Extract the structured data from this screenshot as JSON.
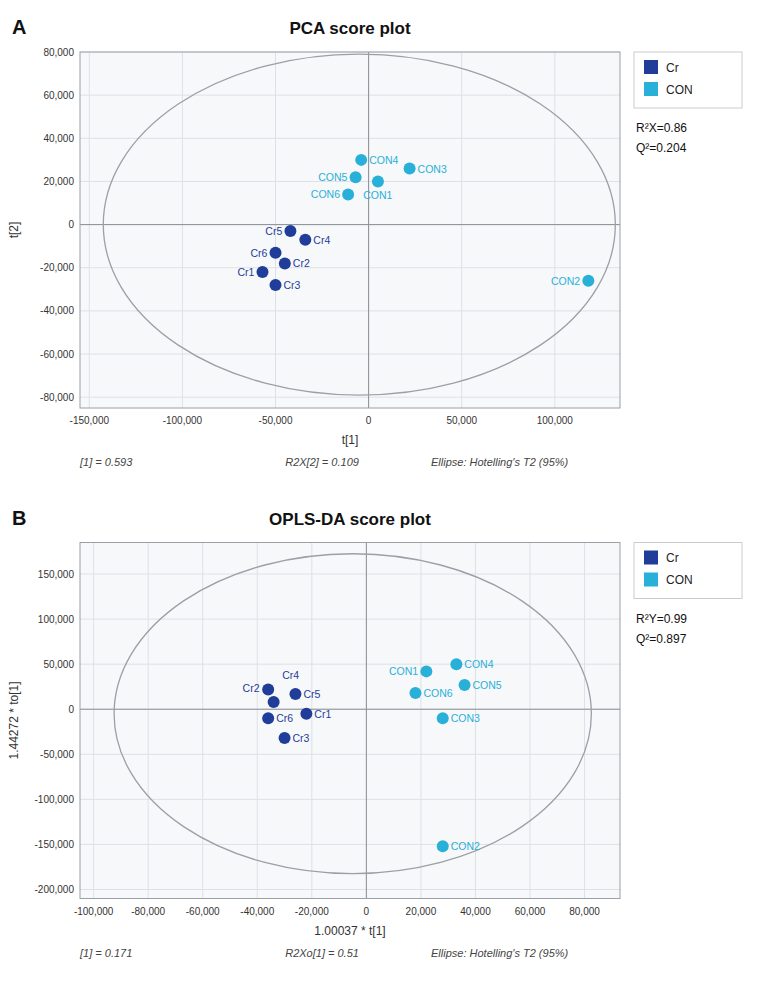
{
  "chart_data": [
    {
      "type": "scatter",
      "panel_label": "A",
      "title": "PCA score plot",
      "x_label": "t[1]",
      "y_label": "t[2]",
      "annotations": [
        "R²X=0.86",
        "Q²=0.204"
      ],
      "footnotes": [
        "[1] = 0.593",
        "R2X[2] = 0.109",
        "Ellipse: Hotelling's T2 (95%)"
      ],
      "xlim": [
        -155000,
        135000
      ],
      "ylim": [
        -85000,
        80000
      ],
      "xticks": [
        {
          "value": -150000,
          "label": "-150,000"
        },
        {
          "value": -100000,
          "label": "-100,000"
        },
        {
          "value": -50000,
          "label": "-50,000"
        },
        0,
        {
          "value": 50000,
          "label": "50,000"
        },
        {
          "value": 100000,
          "label": "100,000"
        }
      ],
      "yticks": [
        {
          "value": -80000,
          "label": "-80,000"
        },
        {
          "value": -60000,
          "label": "-60,000"
        },
        {
          "value": -40000,
          "label": "-40,000"
        },
        {
          "value": -20000,
          "label": "-20,000"
        },
        0,
        {
          "value": 20000,
          "label": "20,000"
        },
        {
          "value": 40000,
          "label": "40,000"
        },
        {
          "value": 60000,
          "label": "60,000"
        },
        {
          "value": 80000,
          "label": "80,000"
        }
      ],
      "grid": true,
      "legend": "right",
      "ellipse": {
        "cx": -5000,
        "cy": 0,
        "width": 275000,
        "height": 158000
      },
      "series": [
        {
          "name": "Cr",
          "color": "#1f3d99",
          "x": [
            -57000,
            -45000,
            -50000,
            -34000,
            -42000,
            -50000
          ],
          "values": [
            -22000,
            -18000,
            -28000,
            -7000,
            -3000,
            -13000
          ],
          "point_labels": [
            "Cr1",
            "Cr2",
            "Cr3",
            "Cr4",
            "Cr5",
            "Cr6"
          ]
        },
        {
          "name": "CON",
          "color": "#29b0d9",
          "x": [
            5000,
            118000,
            22000,
            -4000,
            -7000,
            -11000
          ],
          "values": [
            20000,
            -26000,
            26000,
            30000,
            22000,
            14000
          ],
          "point_labels": [
            "CON1",
            "CON2",
            "CON3",
            "CON4",
            "CON5",
            "CON6"
          ]
        }
      ]
    },
    {
      "type": "scatter",
      "panel_label": "B",
      "title": "OPLS-DA score plot",
      "x_label": "1.00037 * t[1]",
      "y_label": "1.44272 * to[1]",
      "annotations": [
        "R²Y=0.99",
        "Q²=0.897"
      ],
      "footnotes": [
        "[1] = 0.171",
        "R2Xo[1] = 0.51",
        "Ellipse: Hotelling's T2 (95%)"
      ],
      "xlim": [
        -105000,
        93000
      ],
      "ylim": [
        -210000,
        185000
      ],
      "xticks": [
        {
          "value": -100000,
          "label": "-100,000"
        },
        {
          "value": -80000,
          "label": "-80,000"
        },
        {
          "value": -60000,
          "label": "-60,000"
        },
        {
          "value": -40000,
          "label": "-40,000"
        },
        {
          "value": -20000,
          "label": "-20,000"
        },
        0,
        {
          "value": 20000,
          "label": "20,000"
        },
        {
          "value": 40000,
          "label": "40,000"
        },
        {
          "value": 60000,
          "label": "60,000"
        },
        {
          "value": 80000,
          "label": "80,000"
        }
      ],
      "yticks": [
        {
          "value": -200000,
          "label": "-200,000"
        },
        {
          "value": -150000,
          "label": "-150,000"
        },
        {
          "value": -100000,
          "label": "-100,000"
        },
        {
          "value": -50000,
          "label": "-50,000"
        },
        0,
        {
          "value": 50000,
          "label": "50,000"
        },
        {
          "value": 100000,
          "label": "100,000"
        },
        {
          "value": 150000,
          "label": "150,000"
        }
      ],
      "grid": true,
      "legend": "right",
      "ellipse": {
        "cx": -5000,
        "cy": -5000,
        "width": 175000,
        "height": 355000
      },
      "series": [
        {
          "name": "Cr",
          "color": "#1f3d99",
          "x": [
            -22000,
            -34000,
            -30000,
            -36000,
            -26000,
            -36000
          ],
          "values": [
            -5000,
            8000,
            -32000,
            22000,
            17000,
            -10000
          ],
          "point_labels": [
            "Cr1",
            "Cr2",
            "Cr3",
            "Cr4",
            "Cr5",
            "Cr6"
          ]
        },
        {
          "name": "CON",
          "color": "#29b0d9",
          "x": [
            22000,
            28000,
            28000,
            33000,
            36000,
            18000
          ],
          "values": [
            42000,
            -152000,
            -10000,
            50000,
            27000,
            18000
          ],
          "point_labels": [
            "CON1",
            "CON2",
            "CON3",
            "CON4",
            "CON5",
            "CON6"
          ]
        }
      ]
    }
  ]
}
